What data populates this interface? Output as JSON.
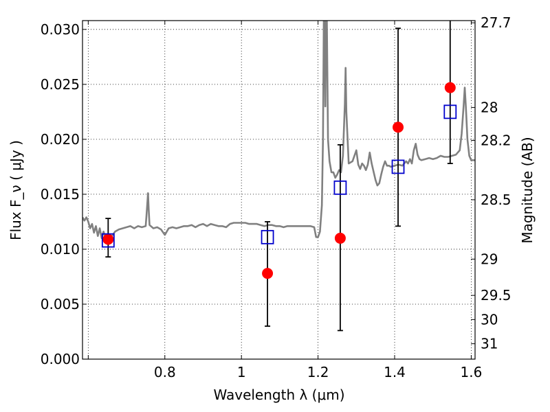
{
  "chart_data": {
    "type": "scatter",
    "title": "",
    "xlabel": "Wavelength  λ (μm)",
    "ylabel": "Flux  F_ν  ( μJy )",
    "y2label": "Magnitude (AB)",
    "xlim": [
      0.585,
      1.61
    ],
    "ylim": [
      0.0,
      0.0308
    ],
    "grid": true,
    "x_ticks": [
      {
        "value": 0.6,
        "label": ""
      },
      {
        "value": 0.8,
        "label": "0.8"
      },
      {
        "value": 1.0,
        "label": "1"
      },
      {
        "value": 1.2,
        "label": "1.2"
      },
      {
        "value": 1.4,
        "label": "1.4"
      },
      {
        "value": 1.6,
        "label": "1.6"
      }
    ],
    "y_ticks": [
      {
        "value": 0.0,
        "label": "0.000"
      },
      {
        "value": 0.005,
        "label": "0.005"
      },
      {
        "value": 0.01,
        "label": "0.010"
      },
      {
        "value": 0.015,
        "label": "0.015"
      },
      {
        "value": 0.02,
        "label": "0.020"
      },
      {
        "value": 0.025,
        "label": "0.025"
      },
      {
        "value": 0.03,
        "label": "0.030"
      }
    ],
    "y2_ticks": [
      {
        "flux": 0.0306,
        "label": "27.7"
      },
      {
        "flux": 0.0229,
        "label": "28"
      },
      {
        "flux": 0.0199,
        "label": "28.2"
      },
      {
        "flux": 0.0145,
        "label": "28.5"
      },
      {
        "flux": 0.0091,
        "label": "29"
      },
      {
        "flux": 0.0058,
        "label": "29.5"
      },
      {
        "flux": 0.0036,
        "label": "30"
      },
      {
        "flux": 0.0014,
        "label": "31"
      }
    ],
    "series": [
      {
        "kind": "spectrum",
        "color": "#808080",
        "points": [
          [
            0.585,
            0.0129
          ],
          [
            0.59,
            0.0126
          ],
          [
            0.595,
            0.0129
          ],
          [
            0.6,
            0.0125
          ],
          [
            0.605,
            0.0119
          ],
          [
            0.61,
            0.0123
          ],
          [
            0.615,
            0.0115
          ],
          [
            0.62,
            0.0121
          ],
          [
            0.625,
            0.0112
          ],
          [
            0.63,
            0.0119
          ],
          [
            0.635,
            0.011
          ],
          [
            0.64,
            0.0116
          ],
          [
            0.645,
            0.011
          ],
          [
            0.65,
            0.0113
          ],
          [
            0.66,
            0.0111
          ],
          [
            0.67,
            0.0116
          ],
          [
            0.68,
            0.0118
          ],
          [
            0.69,
            0.0119
          ],
          [
            0.7,
            0.012
          ],
          [
            0.71,
            0.0121
          ],
          [
            0.72,
            0.0119
          ],
          [
            0.73,
            0.0121
          ],
          [
            0.74,
            0.012
          ],
          [
            0.75,
            0.0121
          ],
          [
            0.752,
            0.013
          ],
          [
            0.754,
            0.014
          ],
          [
            0.756,
            0.0151
          ],
          [
            0.758,
            0.0135
          ],
          [
            0.76,
            0.0122
          ],
          [
            0.77,
            0.0119
          ],
          [
            0.78,
            0.012
          ],
          [
            0.79,
            0.0118
          ],
          [
            0.8,
            0.0113
          ],
          [
            0.81,
            0.0119
          ],
          [
            0.82,
            0.012
          ],
          [
            0.83,
            0.0119
          ],
          [
            0.84,
            0.012
          ],
          [
            0.85,
            0.0121
          ],
          [
            0.86,
            0.0121
          ],
          [
            0.87,
            0.0122
          ],
          [
            0.88,
            0.012
          ],
          [
            0.89,
            0.0122
          ],
          [
            0.9,
            0.0123
          ],
          [
            0.91,
            0.0121
          ],
          [
            0.92,
            0.0123
          ],
          [
            0.93,
            0.0122
          ],
          [
            0.94,
            0.0121
          ],
          [
            0.95,
            0.0121
          ],
          [
            0.96,
            0.012
          ],
          [
            0.97,
            0.0123
          ],
          [
            0.98,
            0.0124
          ],
          [
            0.99,
            0.0124
          ],
          [
            1.0,
            0.0124
          ],
          [
            1.01,
            0.0124
          ],
          [
            1.02,
            0.0123
          ],
          [
            1.03,
            0.0123
          ],
          [
            1.04,
            0.0123
          ],
          [
            1.05,
            0.0122
          ],
          [
            1.06,
            0.0121
          ],
          [
            1.07,
            0.0122
          ],
          [
            1.08,
            0.0122
          ],
          [
            1.09,
            0.0121
          ],
          [
            1.1,
            0.0121
          ],
          [
            1.11,
            0.012
          ],
          [
            1.12,
            0.0121
          ],
          [
            1.13,
            0.0121
          ],
          [
            1.14,
            0.0121
          ],
          [
            1.15,
            0.0121
          ],
          [
            1.16,
            0.0121
          ],
          [
            1.17,
            0.0121
          ],
          [
            1.18,
            0.0121
          ],
          [
            1.19,
            0.012
          ],
          [
            1.195,
            0.0111
          ],
          [
            1.2,
            0.0111
          ],
          [
            1.205,
            0.0116
          ],
          [
            1.21,
            0.014
          ],
          [
            1.213,
            0.02
          ],
          [
            1.215,
            0.031
          ],
          [
            1.217,
            0.031
          ],
          [
            1.219,
            0.023
          ],
          [
            1.221,
            0.031
          ],
          [
            1.223,
            0.031
          ],
          [
            1.226,
            0.02
          ],
          [
            1.23,
            0.018
          ],
          [
            1.235,
            0.017
          ],
          [
            1.24,
            0.017
          ],
          [
            1.245,
            0.0165
          ],
          [
            1.25,
            0.0168
          ],
          [
            1.255,
            0.0172
          ],
          [
            1.26,
            0.017
          ],
          [
            1.265,
            0.0185
          ],
          [
            1.27,
            0.0232
          ],
          [
            1.272,
            0.0265
          ],
          [
            1.274,
            0.0225
          ],
          [
            1.28,
            0.0178
          ],
          [
            1.29,
            0.018
          ],
          [
            1.3,
            0.019
          ],
          [
            1.305,
            0.0177
          ],
          [
            1.31,
            0.0173
          ],
          [
            1.315,
            0.0178
          ],
          [
            1.32,
            0.0176
          ],
          [
            1.325,
            0.0172
          ],
          [
            1.33,
            0.0177
          ],
          [
            1.335,
            0.0188
          ],
          [
            1.34,
            0.0178
          ],
          [
            1.35,
            0.0163
          ],
          [
            1.355,
            0.0158
          ],
          [
            1.36,
            0.016
          ],
          [
            1.365,
            0.0168
          ],
          [
            1.37,
            0.0175
          ],
          [
            1.375,
            0.018
          ],
          [
            1.38,
            0.0176
          ],
          [
            1.385,
            0.0176
          ],
          [
            1.39,
            0.0175
          ],
          [
            1.4,
            0.0176
          ],
          [
            1.41,
            0.0177
          ],
          [
            1.42,
            0.0176
          ],
          [
            1.43,
            0.018
          ],
          [
            1.435,
            0.0178
          ],
          [
            1.44,
            0.0182
          ],
          [
            1.445,
            0.0178
          ],
          [
            1.45,
            0.019
          ],
          [
            1.455,
            0.0196
          ],
          [
            1.46,
            0.0186
          ],
          [
            1.465,
            0.0182
          ],
          [
            1.47,
            0.0181
          ],
          [
            1.48,
            0.0182
          ],
          [
            1.49,
            0.0183
          ],
          [
            1.5,
            0.0182
          ],
          [
            1.51,
            0.0183
          ],
          [
            1.52,
            0.0185
          ],
          [
            1.53,
            0.0184
          ],
          [
            1.54,
            0.0184
          ],
          [
            1.55,
            0.0185
          ],
          [
            1.56,
            0.0186
          ],
          [
            1.57,
            0.019
          ],
          [
            1.575,
            0.0205
          ],
          [
            1.58,
            0.023
          ],
          [
            1.583,
            0.0247
          ],
          [
            1.586,
            0.023
          ],
          [
            1.59,
            0.02
          ],
          [
            1.595,
            0.0185
          ],
          [
            1.6,
            0.0181
          ],
          [
            1.61,
            0.0181
          ]
        ]
      },
      {
        "kind": "model_squares",
        "marker": "square",
        "color": "#0000cc",
        "x": [
          0.652,
          1.068,
          1.258,
          1.409,
          1.545
        ],
        "y": [
          0.0108,
          0.0111,
          0.0156,
          0.0175,
          0.0225
        ]
      },
      {
        "kind": "observed_points",
        "marker": "circle",
        "color": "#ff0000",
        "x": [
          0.652,
          1.068,
          1.258,
          1.409,
          1.545
        ],
        "y": [
          0.0109,
          0.0078,
          0.011,
          0.0211,
          0.0247
        ],
        "y_err_low": [
          0.0093,
          0.003,
          0.0026,
          0.0121,
          0.0178
        ],
        "y_err_high": [
          0.0128,
          0.0125,
          0.0195,
          0.0301,
          0.0308
        ]
      }
    ]
  }
}
